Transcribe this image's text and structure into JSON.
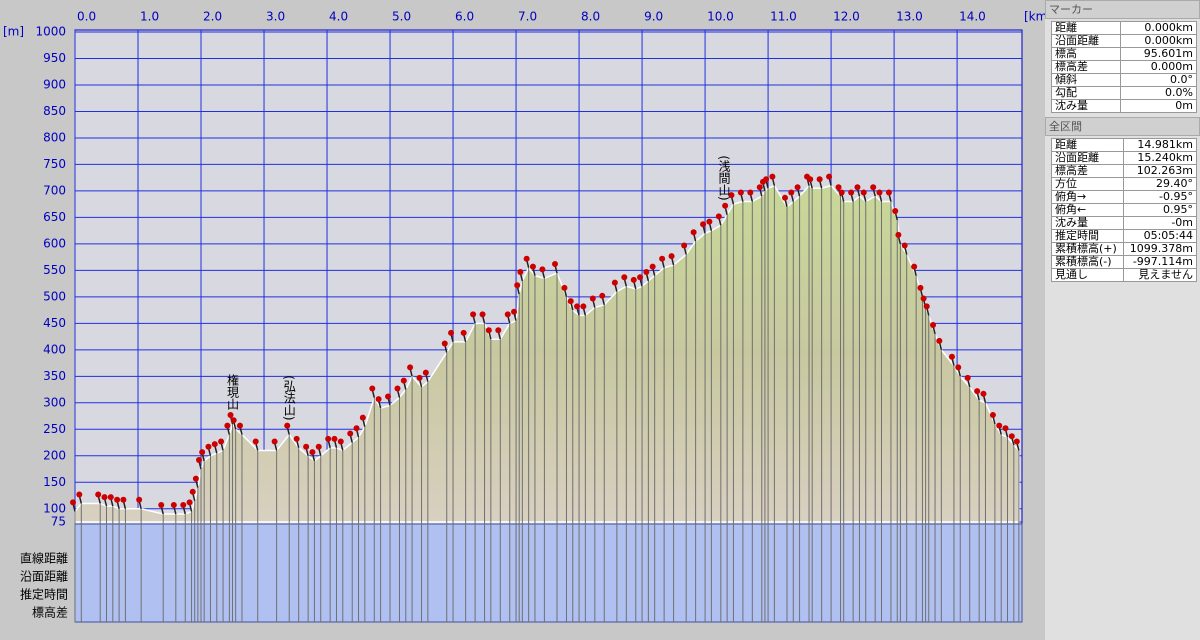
{
  "chart_data": {
    "type": "area",
    "x_label": "[km]",
    "y_label": "[m]",
    "x": [
      0,
      0.1,
      0.4,
      0.5,
      0.6,
      0.7,
      0.8,
      1.05,
      1.4,
      1.6,
      1.75,
      1.85,
      1.9,
      1.95,
      2.0,
      2.05,
      2.15,
      2.25,
      2.35,
      2.45,
      2.5,
      2.55,
      2.65,
      2.9,
      3.2,
      3.4,
      3.55,
      3.7,
      3.8,
      3.9,
      4.05,
      4.15,
      4.25,
      4.4,
      4.5,
      4.6,
      4.75,
      4.85,
      5.0,
      5.15,
      5.25,
      5.35,
      5.5,
      5.6,
      5.9,
      6.0,
      6.2,
      6.35,
      6.5,
      6.6,
      6.75,
      6.9,
      7.0,
      7.05,
      7.1,
      7.2,
      7.3,
      7.45,
      7.65,
      7.8,
      7.9,
      8.0,
      8.1,
      8.25,
      8.4,
      8.6,
      8.75,
      8.9,
      9.0,
      9.1,
      9.2,
      9.35,
      9.5,
      9.7,
      9.85,
      10.0,
      10.1,
      10.25,
      10.35,
      10.45,
      10.6,
      10.75,
      10.9,
      10.95,
      11.0,
      11.1,
      11.3,
      11.4,
      11.5,
      11.65,
      11.7,
      11.85,
      12.0,
      12.15,
      12.2,
      12.35,
      12.45,
      12.55,
      12.7,
      12.8,
      12.95,
      13.05,
      13.1,
      13.2,
      13.35,
      13.45,
      13.5,
      13.55,
      13.65,
      13.75,
      13.95,
      14.05,
      14.2,
      14.35,
      14.45,
      14.6,
      14.7,
      14.8,
      14.9,
      14.98
    ],
    "values": [
      95,
      110,
      110,
      105,
      105,
      100,
      100,
      100,
      90,
      90,
      90,
      95,
      115,
      140,
      175,
      190,
      200,
      205,
      210,
      240,
      260,
      250,
      240,
      210,
      210,
      240,
      215,
      200,
      190,
      200,
      215,
      215,
      210,
      225,
      235,
      255,
      310,
      290,
      295,
      310,
      325,
      350,
      330,
      340,
      395,
      415,
      415,
      450,
      450,
      420,
      420,
      450,
      455,
      505,
      530,
      555,
      540,
      535,
      545,
      500,
      475,
      465,
      465,
      480,
      485,
      510,
      520,
      515,
      520,
      530,
      540,
      555,
      560,
      580,
      605,
      620,
      625,
      635,
      655,
      675,
      680,
      680,
      690,
      700,
      705,
      710,
      670,
      680,
      690,
      710,
      705,
      705,
      710,
      690,
      680,
      680,
      690,
      680,
      690,
      680,
      680,
      645,
      600,
      580,
      540,
      500,
      480,
      465,
      430,
      400,
      370,
      350,
      330,
      305,
      300,
      260,
      240,
      235,
      220,
      210
    ],
    "xlim": [
      0,
      15.03
    ],
    "ylim": [
      75,
      1000
    ],
    "xticks": [
      {
        "value": 0,
        "label": "0.0"
      },
      {
        "value": 1,
        "label": "1.0"
      },
      {
        "value": 2,
        "label": "2.0"
      },
      {
        "value": 3,
        "label": "3.0"
      },
      {
        "value": 4,
        "label": "4.0"
      },
      {
        "value": 5,
        "label": "5.0"
      },
      {
        "value": 6,
        "label": "6.0"
      },
      {
        "value": 7,
        "label": "7.0"
      },
      {
        "value": 8,
        "label": "8.0"
      },
      {
        "value": 9,
        "label": "9.0"
      },
      {
        "value": 10,
        "label": "10.0"
      },
      {
        "value": 11,
        "label": "11.0"
      },
      {
        "value": 12,
        "label": "12.0"
      },
      {
        "value": 13,
        "label": "13.0"
      },
      {
        "value": 14,
        "label": "14.0"
      }
    ],
    "yticks": [
      1000,
      950,
      900,
      850,
      800,
      750,
      700,
      650,
      600,
      550,
      500,
      450,
      400,
      350,
      300,
      250,
      200,
      150,
      100,
      75
    ],
    "grid": true,
    "color": "#cc0000",
    "annotations": [
      {
        "text": "権現山",
        "x": 2.5
      },
      {
        "text": "(弘法山)",
        "x": 3.4
      },
      {
        "text": "(浅間山)",
        "x": 10.3
      }
    ]
  },
  "profile_table": {
    "row_labels": [
      "直線距離",
      "沿面距離",
      "推定時間",
      "標高差"
    ]
  },
  "panel": {
    "marker": {
      "title": "マーカー",
      "rows": [
        [
          "距離",
          "0.000km"
        ],
        [
          "沿面距離",
          "0.000km"
        ],
        [
          "標高",
          "95.601m"
        ],
        [
          "標高差",
          "0.000m"
        ],
        [
          "傾斜",
          "0.0°"
        ],
        [
          "勾配",
          "0.0%"
        ],
        [
          "沈み量",
          "0m"
        ]
      ]
    },
    "total": {
      "title": "全区間",
      "rows": [
        [
          "距離",
          "14.981km"
        ],
        [
          "沿面距離",
          "15.240km"
        ],
        [
          "標高差",
          "102.263m"
        ],
        [
          "方位",
          "29.40°"
        ],
        [
          "俯角→",
          "-0.95°"
        ],
        [
          "俯角←",
          "0.95°"
        ],
        [
          "沈み量",
          "-0m"
        ],
        [
          "推定時間",
          "05:05:44"
        ],
        [
          "累積標高(+)",
          "1099.378m"
        ],
        [
          "累積標高(-)",
          "-997.114m"
        ],
        [
          "見通し",
          "見えません"
        ]
      ]
    }
  }
}
